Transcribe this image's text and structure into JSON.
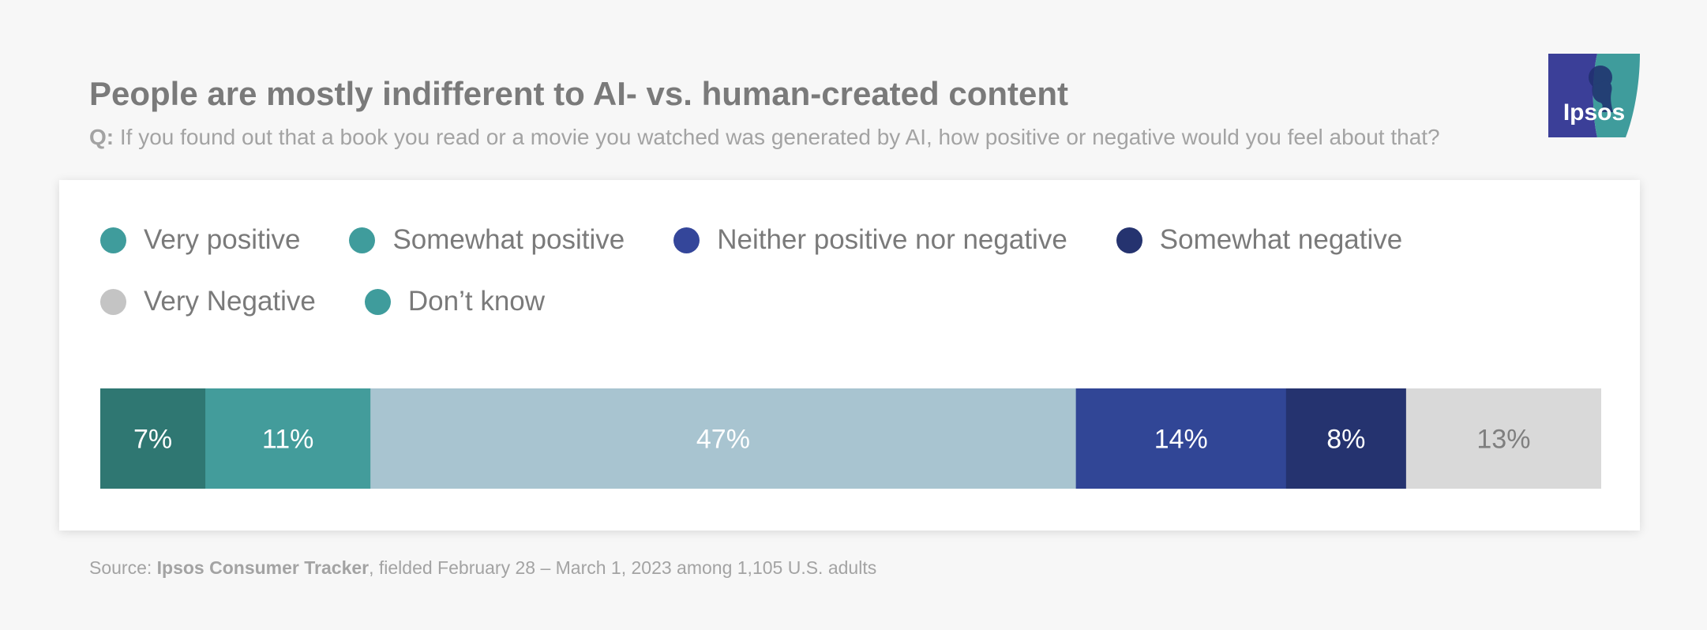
{
  "title": "People are mostly indifferent to AI- vs. human-created content",
  "question": {
    "prefix": "Q:",
    "text": "If you found out that a book you read or a movie you watched was generated by AI, how positive or negative would you feel about that?"
  },
  "logo": {
    "text": "Ipsos",
    "colors": {
      "blue": "#3b3f98",
      "teal": "#3f9c9c"
    }
  },
  "legend": {
    "row1": [
      {
        "label": "Very positive",
        "color": "#3f9c9c"
      },
      {
        "label": "Somewhat positive",
        "color": "#3f9c9c"
      },
      {
        "label": "Neither positive nor negative",
        "color": "#34469a"
      },
      {
        "label": "Somewhat negative",
        "color": "#25336f"
      }
    ],
    "row2": [
      {
        "label": "Very Negative",
        "color": "#c4c4c4"
      },
      {
        "label": "Don’t know",
        "color": "#3f9c9c"
      }
    ]
  },
  "chart_data": {
    "type": "bar",
    "orientation": "horizontal-stacked-100",
    "title": "People are mostly indifferent to AI- vs. human-created content",
    "categories": [
      "Very positive",
      "Somewhat positive",
      "Neither positive nor negative",
      "Somewhat negative",
      "Very Negative",
      "Don’t know"
    ],
    "unit": "%",
    "series": [
      {
        "name": "Very positive",
        "value": 7,
        "color": "#2f7772",
        "label_color": "#ffffff"
      },
      {
        "name": "Somewhat positive",
        "value": 11,
        "color": "#439c9b",
        "label_color": "#ffffff"
      },
      {
        "name": "Neither positive nor negative",
        "value": 47,
        "color": "#a8c4d0",
        "label_color": "#ffffff"
      },
      {
        "name": "Somewhat negative",
        "value": 14,
        "color": "#314696",
        "label_color": "#ffffff"
      },
      {
        "name": "Very Negative",
        "value": 8,
        "color": "#25336f",
        "label_color": "#ffffff"
      },
      {
        "name": "Don’t know",
        "value": 13,
        "color": "#d9d9d9",
        "label_color": "#7f7f7f"
      }
    ],
    "total": 100
  },
  "source": {
    "prefix": "Source: ",
    "bold": "Ipsos Consumer Tracker",
    "rest": ", fielded February 28 – March 1, 2023 among 1,105 U.S. adults"
  }
}
